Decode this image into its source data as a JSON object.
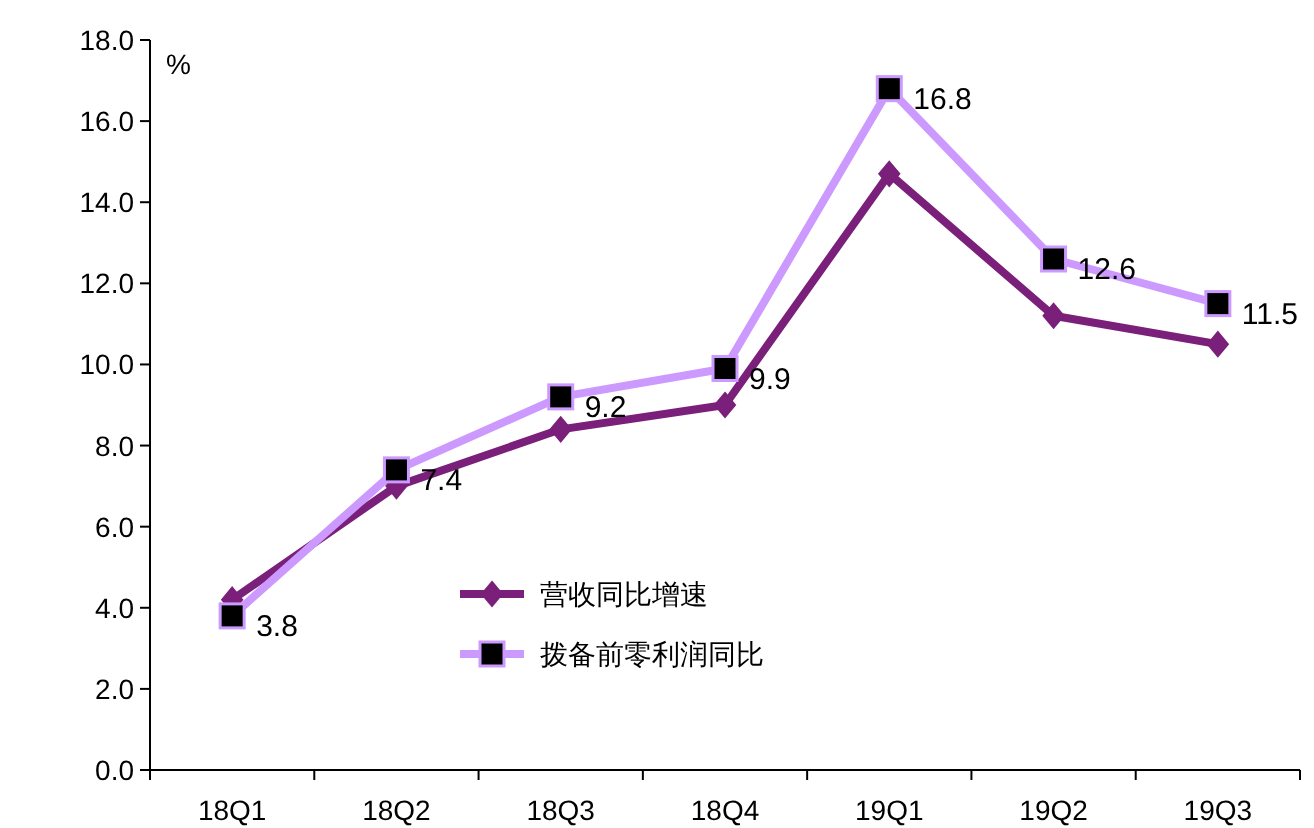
{
  "chart_data": {
    "type": "line",
    "ylabel": "%",
    "categories": [
      "18Q1",
      "18Q2",
      "18Q3",
      "18Q4",
      "19Q1",
      "19Q2",
      "19Q3"
    ],
    "ylim": [
      0,
      18
    ],
    "yticks": [
      {
        "value": 0,
        "label": "0.0"
      },
      {
        "value": 2,
        "label": "2.0"
      },
      {
        "value": 4,
        "label": "4.0"
      },
      {
        "value": 6,
        "label": "6.0"
      },
      {
        "value": 8,
        "label": "8.0"
      },
      {
        "value": 10,
        "label": "10.0"
      },
      {
        "value": 12,
        "label": "12.0"
      },
      {
        "value": 14,
        "label": "14.0"
      },
      {
        "value": 16,
        "label": "16.0"
      },
      {
        "value": 18,
        "label": "18.0"
      }
    ],
    "grid": false,
    "legend": "bottom",
    "line_style": "solid",
    "series": [
      {
        "name": "营收同比增速",
        "color": "#7a1f7a",
        "marker": "diamond",
        "values": [
          4.2,
          7.0,
          8.4,
          9.0,
          14.7,
          11.2,
          10.5
        ]
      },
      {
        "name": "拨备前零利润同比",
        "color": "#cc99ff",
        "marker": "square",
        "values": [
          3.8,
          7.4,
          9.2,
          9.9,
          16.8,
          12.6,
          11.5
        ],
        "value_labels": [
          "3.8",
          "7.4",
          "9.2",
          "9.9",
          "16.8",
          "12.6",
          "11.5"
        ]
      }
    ]
  }
}
